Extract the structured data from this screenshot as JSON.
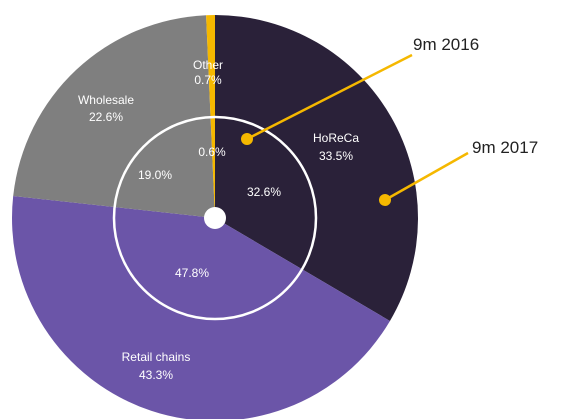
{
  "chart_data": {
    "type": "pie",
    "rings": [
      {
        "period": "9m 2017",
        "slices": [
          {
            "name": "HoReCa",
            "value": 33.5,
            "label": "33.5%",
            "color": "#2a2139"
          },
          {
            "name": "Retail chains",
            "value": 43.3,
            "label": "43.3%",
            "color": "#6b55a8"
          },
          {
            "name": "Wholesale",
            "value": 22.6,
            "label": "22.6%",
            "color": "#7f7f7f"
          },
          {
            "name": "Other",
            "value": 0.7,
            "label": "0.7%",
            "color": "#f5b800"
          }
        ]
      },
      {
        "period": "9m 2016",
        "slices": [
          {
            "name": "HoReCa",
            "value": 32.6,
            "label": "32.6%"
          },
          {
            "name": "Retail chains",
            "value": 47.8,
            "label": "47.8%"
          },
          {
            "name": "Wholesale",
            "value": 19.0,
            "label": "19.0%"
          },
          {
            "name": "Other",
            "value": 0.6,
            "label": "0.6%"
          }
        ]
      }
    ],
    "callouts": {
      "inner": "9m 2016",
      "outer": "9m 2017"
    },
    "accent_color": "#f5b800",
    "ring_line_color": "#ffffff"
  }
}
